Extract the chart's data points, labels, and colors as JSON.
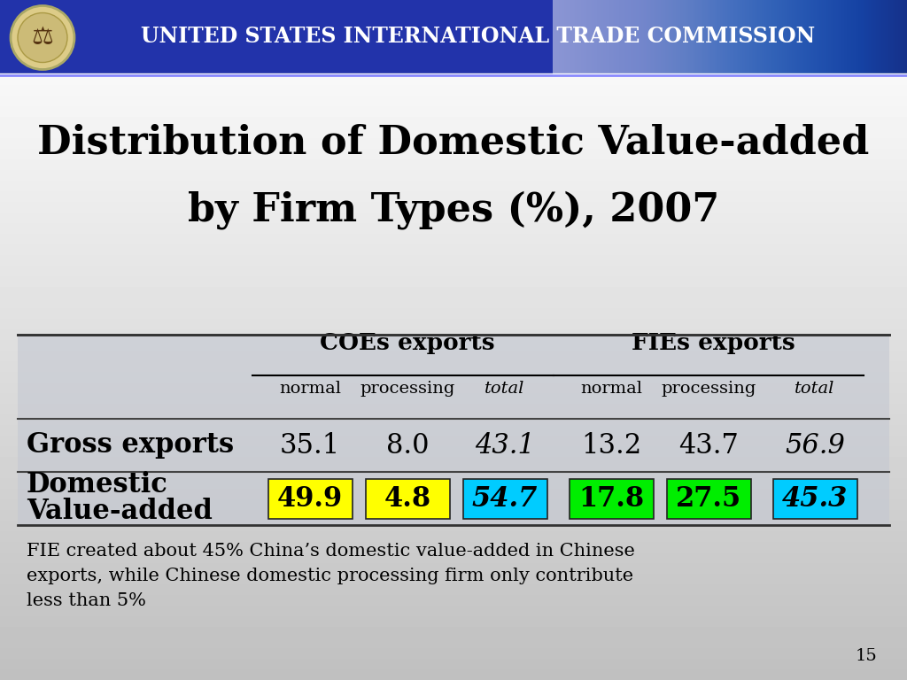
{
  "title_line1": "Distribution of Domestic Value-added",
  "title_line2": "by Firm Types (%), 2007",
  "coes_header": "COEs exports",
  "fies_header": "FIEs exports",
  "sub_headers": [
    "normal",
    "processing",
    "total",
    "normal",
    "processing",
    "total"
  ],
  "sub_italic": [
    false,
    false,
    true,
    false,
    false,
    true
  ],
  "row1_label": "Gross exports",
  "row1_values": [
    "35.1",
    "8.0",
    "43.1",
    "13.2",
    "43.7",
    "56.9"
  ],
  "row1_italic": [
    false,
    false,
    true,
    false,
    false,
    true
  ],
  "row2_label1": "Domestic",
  "row2_label2": "Value-added",
  "row2_values": [
    "49.9",
    "4.8",
    "54.7",
    "17.8",
    "27.5",
    "45.3"
  ],
  "row2_italic": [
    false,
    false,
    true,
    false,
    false,
    true
  ],
  "row2_bg_colors": [
    "#ffff00",
    "#ffff00",
    "#00ccff",
    "#00ee00",
    "#00ee00",
    "#00ccff"
  ],
  "footnote_line1": "FIE created about 45% China’s domestic value-added in Chinese",
  "footnote_line2": "exports, while Chinese domestic processing firm only contribute",
  "footnote_line3": "less than 5%",
  "page_number": "15",
  "banner_color": "#3333aa",
  "title_area_top_color": "#ffffff",
  "title_area_bot_color": "#cccccc",
  "table_area_color": "#c8ccd4",
  "bottom_area_color": "#b8bcc8"
}
